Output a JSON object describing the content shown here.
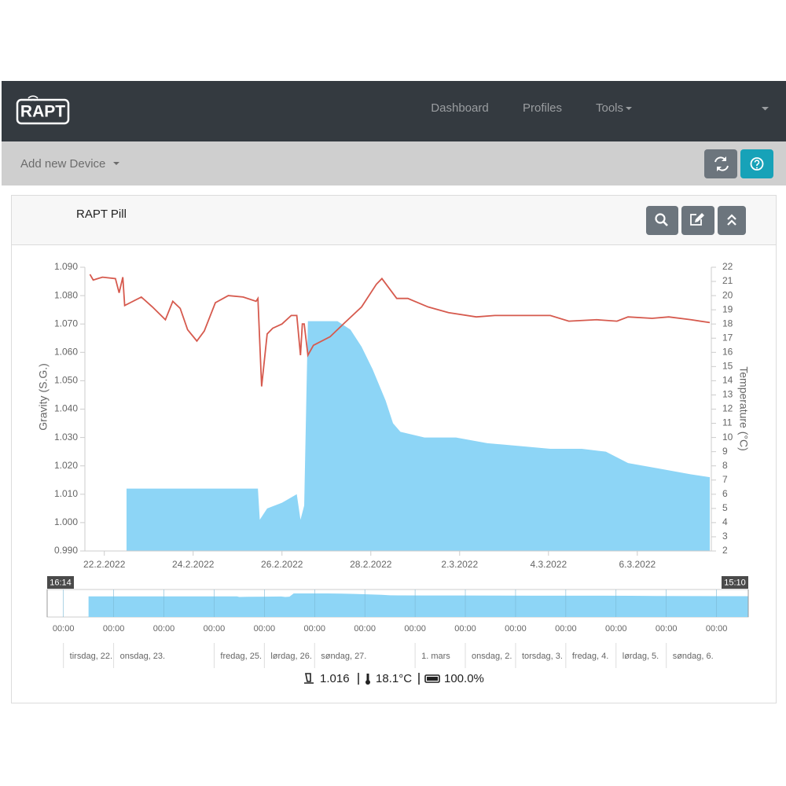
{
  "navbar": {
    "logo": "RAPT",
    "links": [
      "Dashboard",
      "Profiles",
      "Tools"
    ]
  },
  "toolbar": {
    "add_device": "Add new Device"
  },
  "card": {
    "title": "RAPT Pill"
  },
  "chart_data": {
    "type": "combo",
    "y_label": "Gravity (S.G.)",
    "y2_label": "Temperature (°C)",
    "xlim": [
      "2022-02-21 13:30",
      "2022-03-07 16:00"
    ],
    "xticks": [
      {
        "value": "2022-02-22 00:00",
        "label": "22.2.2022"
      },
      {
        "value": "2022-02-24 00:00",
        "label": "24.2.2022"
      },
      {
        "value": "2022-02-26 00:00",
        "label": "26.2.2022"
      },
      {
        "value": "2022-02-28 00:00",
        "label": "28.2.2022"
      },
      {
        "value": "2022-03-02 00:00",
        "label": "2.3.2022"
      },
      {
        "value": "2022-03-04 00:00",
        "label": "4.3.2022"
      },
      {
        "value": "2022-03-06 00:00",
        "label": "6.3.2022"
      }
    ],
    "ylim": [
      0.99,
      1.09
    ],
    "yticks": [
      {
        "value": 0.99,
        "label": "0.990"
      },
      {
        "value": 1,
        "label": "1.000"
      },
      {
        "value": 1.01,
        "label": "1.010"
      },
      {
        "value": 1.02,
        "label": "1.020"
      },
      {
        "value": 1.03,
        "label": "1.030"
      },
      {
        "value": 1.04,
        "label": "1.040"
      },
      {
        "value": 1.05,
        "label": "1.050"
      },
      {
        "value": 1.06,
        "label": "1.060"
      },
      {
        "value": 1.07,
        "label": "1.070"
      },
      {
        "value": 1.08,
        "label": "1.080"
      },
      {
        "value": 1.09,
        "label": "1.090"
      }
    ],
    "y2lim": [
      2,
      22
    ],
    "y2ticks": [
      2,
      3,
      4,
      5,
      6,
      7,
      8,
      9,
      10,
      11,
      12,
      13,
      14,
      15,
      16,
      17,
      18,
      19,
      20,
      21,
      22
    ],
    "series": [
      {
        "type": "area",
        "color": "#8dd5f6",
        "x": [
          "2022-02-22 12:00",
          "2022-02-25 11:00",
          "2022-02-25 12:00",
          "2022-02-25 16:00",
          "2022-02-26 00:00",
          "2022-02-26 08:00",
          "2022-02-26 10:00",
          "2022-02-26 12:00",
          "2022-02-26 14:00",
          "2022-02-27 06:00",
          "2022-02-27 13:00",
          "2022-02-27 19:00",
          "2022-02-28 01:00",
          "2022-02-28 08:00",
          "2022-02-28 12:00",
          "2022-02-28 16:00",
          "2022-03-01 05:00",
          "2022-03-01 22:00",
          "2022-03-02 15:00",
          "2022-03-03 08:00",
          "2022-03-04 01:00",
          "2022-03-04 18:00",
          "2022-03-05 07:00",
          "2022-03-05 19:00",
          "2022-03-06 12:00",
          "2022-03-07 05:00",
          "2022-03-07 15:10"
        ],
        "values": [
          1.012,
          1.012,
          1.001,
          1.005,
          1.007,
          1.01,
          1.001,
          1.006,
          1.071,
          1.071,
          1.068,
          1.062,
          1.054,
          1.043,
          1.035,
          1.032,
          1.03,
          1.03,
          1.028,
          1.027,
          1.026,
          1.026,
          1.025,
          1.021,
          1.019,
          1.017,
          1.016
        ]
      },
      {
        "type": "line",
        "axis": "y2",
        "color": "#d65a4e",
        "x": [
          "2022-02-21 16:14",
          "2022-02-21 18:00",
          "2022-02-21 23:00",
          "2022-02-22 06:00",
          "2022-02-22 08:00",
          "2022-02-22 10:00",
          "2022-02-22 11:00",
          "2022-02-22 14:00",
          "2022-02-22 20:00",
          "2022-02-23 02:00",
          "2022-02-23 09:00",
          "2022-02-23 13:00",
          "2022-02-23 17:00",
          "2022-02-23 21:00",
          "2022-02-24 02:00",
          "2022-02-24 06:00",
          "2022-02-24 12:00",
          "2022-02-24 19:00",
          "2022-02-25 03:00",
          "2022-02-25 10:00",
          "2022-02-25 11:00",
          "2022-02-25 13:00",
          "2022-02-25 16:00",
          "2022-02-25 19:00",
          "2022-02-26 00:00",
          "2022-02-26 05:00",
          "2022-02-26 08:00",
          "2022-02-26 10:00",
          "2022-02-26 11:00",
          "2022-02-26 12:00",
          "2022-02-26 14:00",
          "2022-02-26 17:00",
          "2022-02-27 02:00",
          "2022-02-27 10:00",
          "2022-02-27 19:00",
          "2022-02-28 03:00",
          "2022-02-28 06:00",
          "2022-02-28 14:00",
          "2022-02-28 20:00",
          "2022-03-01 07:00",
          "2022-03-01 18:00",
          "2022-03-02 09:00",
          "2022-03-02 19:00",
          "2022-03-03 16:00",
          "2022-03-04 01:00",
          "2022-03-04 11:00",
          "2022-03-05 02:00",
          "2022-03-05 13:00",
          "2022-03-05 19:00",
          "2022-03-06 08:00",
          "2022-03-06 17:00",
          "2022-03-07 05:00",
          "2022-03-07 15:10"
        ],
        "values": [
          21.5,
          21.1,
          21.3,
          21.2,
          20.2,
          21.3,
          19.3,
          19.5,
          19.9,
          19.2,
          18.3,
          19.6,
          19.1,
          17.6,
          16.8,
          17.5,
          19.5,
          20.0,
          19.9,
          19.6,
          19.8,
          13.6,
          17.3,
          17.7,
          18.0,
          18.6,
          18.6,
          15.8,
          18.0,
          18.0,
          15.8,
          16.5,
          17.1,
          18.1,
          19.2,
          20.8,
          21.2,
          19.8,
          19.8,
          19.2,
          18.8,
          18.5,
          18.6,
          18.6,
          18.6,
          18.2,
          18.3,
          18.2,
          18.5,
          18.4,
          18.5,
          18.3,
          18.1
        ]
      }
    ]
  },
  "navigator": {
    "xlim": [
      {
        "value": "2022-02-21 16:14",
        "label": "16:14"
      },
      {
        "value": "2022-03-07 15:10",
        "label": "15:10"
      }
    ],
    "xticks": [
      {
        "value": "2022-02-22 00:00",
        "label": "00:00"
      },
      {
        "value": "2022-02-23 00:00",
        "label": "00:00"
      },
      {
        "value": "2022-02-24 00:00",
        "label": "00:00"
      },
      {
        "value": "2022-02-25 00:00",
        "label": "00:00"
      },
      {
        "value": "2022-02-26 00:00",
        "label": "00:00"
      },
      {
        "value": "2022-02-27 00:00",
        "label": "00:00"
      },
      {
        "value": "2022-02-28 00:00",
        "label": "00:00"
      },
      {
        "value": "2022-03-01 00:00",
        "label": "00:00"
      },
      {
        "value": "2022-03-02 00:00",
        "label": "00:00"
      },
      {
        "value": "2022-03-03 00:00",
        "label": "00:00"
      },
      {
        "value": "2022-03-04 00:00",
        "label": "00:00"
      },
      {
        "value": "2022-03-05 00:00",
        "label": "00:00"
      },
      {
        "value": "2022-03-06 00:00",
        "label": "00:00"
      },
      {
        "value": "2022-03-07 00:00",
        "label": "00:00"
      }
    ],
    "day_labels": [
      {
        "value": "2022-02-22 00:00",
        "label": "tirsdag, 22."
      },
      {
        "value": "2022-02-23 00:00",
        "label": "onsdag, 23."
      },
      {
        "value": "2022-02-25 00:00",
        "label": "fredag, 25."
      },
      {
        "value": "2022-02-26 00:00",
        "label": "lørdag, 26."
      },
      {
        "value": "2022-02-27 00:00",
        "label": "søndag, 27."
      },
      {
        "value": "2022-03-01 00:00",
        "label": "1. mars"
      },
      {
        "value": "2022-03-02 00:00",
        "label": "onsdag, 2."
      },
      {
        "value": "2022-03-03 00:00",
        "label": "torsdag, 3."
      },
      {
        "value": "2022-03-04 00:00",
        "label": "fredag, 4."
      },
      {
        "value": "2022-03-05 00:00",
        "label": "lørdag, 5."
      },
      {
        "value": "2022-03-06 00:00",
        "label": "søndag, 6."
      }
    ]
  },
  "status": {
    "gravity": "1.016",
    "temperature": "18.1°C",
    "battery": "100.0%"
  }
}
